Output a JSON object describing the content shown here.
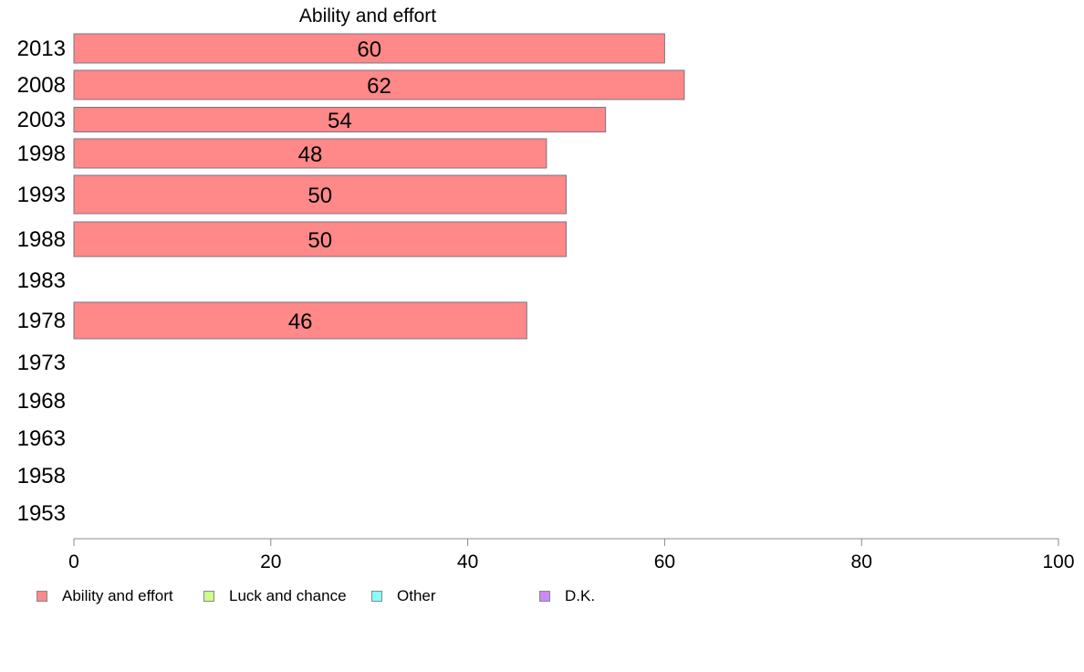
{
  "chart_data": {
    "type": "bar",
    "orientation": "horizontal",
    "title": "Ability and effort",
    "categories": [
      "2013",
      "2008",
      "2003",
      "1998",
      "1993",
      "1988",
      "1983",
      "1978",
      "1973",
      "1968",
      "1963",
      "1958",
      "1953"
    ],
    "series": [
      {
        "name": "Ability and effort",
        "color": "#ff8888",
        "values": [
          60,
          62,
          54,
          48,
          50,
          50,
          null,
          46,
          null,
          null,
          null,
          null,
          null
        ],
        "labels": [
          "60",
          "62",
          "54",
          "48",
          "50",
          "50",
          "",
          "46",
          "",
          "",
          "",
          "",
          ""
        ]
      }
    ],
    "xlim": [
      0,
      100
    ],
    "xticks": [
      "0",
      "20",
      "40",
      "60",
      "80",
      "100"
    ],
    "grid": false
  },
  "legend": {
    "placement": "bottom",
    "items": [
      {
        "label": "Ability and effort",
        "color": "#ff8888"
      },
      {
        "label": "Luck and chance",
        "color": "#ccff88"
      },
      {
        "label": "Other",
        "color": "#88ffff"
      },
      {
        "label": "D.K.",
        "color": "#cc88ff"
      }
    ]
  }
}
